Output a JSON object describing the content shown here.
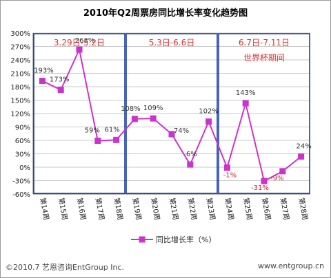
{
  "chart_data": {
    "type": "line",
    "title": "2010年Q2周票房同比增长率变化趋势图",
    "categories": [
      "第14周",
      "第15周",
      "第16周",
      "第17周",
      "第18周",
      "第19周",
      "第20周",
      "第21周",
      "第22周",
      "第23周",
      "第24周",
      "第25周",
      "第26周",
      "第27周",
      "第28周"
    ],
    "series": [
      {
        "name": "同比增长率（%）",
        "values": [
          193,
          173,
          263,
          59,
          61,
          108,
          109,
          74,
          6,
          102,
          -1,
          143,
          -31,
          -9,
          24
        ],
        "color": "#cc33cc"
      }
    ],
    "data_labels": [
      "193%",
      "173%",
      "263%",
      "59%",
      "61%",
      "108%",
      "109%",
      "74%",
      "6%",
      "102%",
      "-1%",
      "143%",
      "-31%",
      "-9%",
      "24%"
    ],
    "negative_label_color": "#e02020",
    "ylim": [
      -60,
      300
    ],
    "yticks": [
      "-60%",
      "-30%",
      "0%",
      "30%",
      "60%",
      "90%",
      "120%",
      "150%",
      "180%",
      "210%",
      "240%",
      "270%",
      "300%"
    ],
    "grid": true,
    "legend_position": "bottom",
    "periods": [
      {
        "label": "3.29日-5.2日",
        "note": ""
      },
      {
        "label": "5.3日-6.6日",
        "note": ""
      },
      {
        "label": "6.7日-7.11日",
        "note": "世界杯期间"
      }
    ],
    "period_color": "#1a3fa8",
    "period_label_color": "#e83030"
  },
  "footer": {
    "left": "©2010.7  艺恩咨询EntGroup Inc.",
    "right": "www.entgroup.cn"
  }
}
